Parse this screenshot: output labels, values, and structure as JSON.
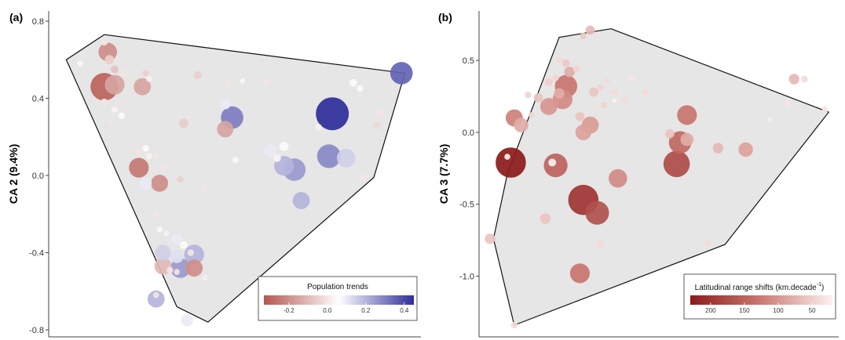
{
  "chart_data": [
    {
      "type": "scatter",
      "panel_label": "(a)",
      "title": "",
      "xlabel": "",
      "ylabel": "CA 2 (9.4%)",
      "xlim": [
        0,
        1
      ],
      "ylim": [
        -0.82,
        0.82
      ],
      "yticks": [
        0.8,
        0.4,
        0.0,
        -0.4,
        -0.8
      ],
      "ytick_labels": [
        "0.8",
        "0.4",
        "0.0",
        "-0.4",
        "-0.8"
      ],
      "grid": false,
      "legend": {
        "title": "Population trends",
        "placement": "bottom-right",
        "range": [
          -0.33,
          0.45
        ],
        "ticks": [
          -0.2,
          0.0,
          0.2,
          0.4
        ],
        "tick_labels": [
          "-0.2",
          "0.0",
          "0.2",
          "0.4"
        ],
        "colors": [
          "#b5564e",
          "#ffffff",
          "#2e2e9a"
        ]
      },
      "hull": [
        [
          0.12,
          0.73
        ],
        [
          0.99,
          0.53
        ],
        [
          0.9,
          -0.01
        ],
        [
          0.42,
          -0.76
        ],
        [
          0.33,
          -0.68
        ],
        [
          0.01,
          0.6
        ]
      ],
      "points": [
        {
          "x": 0.05,
          "y": 0.58,
          "v": 0.04,
          "s": 0.9
        },
        {
          "x": 0.12,
          "y": 0.69,
          "v": 0.0,
          "s": 1.0
        },
        {
          "x": 0.13,
          "y": 0.64,
          "v": -0.2,
          "s": 2.8
        },
        {
          "x": 0.135,
          "y": 0.6,
          "v": -0.05,
          "s": 1.4
        },
        {
          "x": 0.15,
          "y": 0.55,
          "v": -0.08,
          "s": 1.2
        },
        {
          "x": 0.18,
          "y": 0.53,
          "v": 0.0,
          "s": 1.0
        },
        {
          "x": 0.24,
          "y": 0.53,
          "v": -0.05,
          "s": 1.0
        },
        {
          "x": 0.25,
          "y": 0.5,
          "v": 0.02,
          "s": 0.9
        },
        {
          "x": 0.12,
          "y": 0.46,
          "v": -0.3,
          "s": 4.2
        },
        {
          "x": 0.15,
          "y": 0.47,
          "v": -0.15,
          "s": 3.0
        },
        {
          "x": 0.23,
          "y": 0.46,
          "v": -0.15,
          "s": 2.6
        },
        {
          "x": 0.12,
          "y": 0.38,
          "v": 0.0,
          "s": 1.1
        },
        {
          "x": 0.15,
          "y": 0.34,
          "v": 0.03,
          "s": 0.9
        },
        {
          "x": 0.17,
          "y": 0.31,
          "v": 0.05,
          "s": 1.0
        },
        {
          "x": 0.14,
          "y": 0.28,
          "v": 0.0,
          "s": 0.8
        },
        {
          "x": 0.39,
          "y": 0.52,
          "v": -0.05,
          "s": 1.2
        },
        {
          "x": 0.48,
          "y": 0.47,
          "v": 0.0,
          "s": 0.9
        },
        {
          "x": 0.52,
          "y": 0.49,
          "v": 0.04,
          "s": 0.8
        },
        {
          "x": 0.35,
          "y": 0.27,
          "v": -0.06,
          "s": 1.4
        },
        {
          "x": 0.47,
          "y": 0.37,
          "v": 0.1,
          "s": 1.6
        },
        {
          "x": 0.49,
          "y": 0.3,
          "v": 0.3,
          "s": 3.4
        },
        {
          "x": 0.47,
          "y": 0.24,
          "v": -0.15,
          "s": 2.5
        },
        {
          "x": 0.59,
          "y": 0.49,
          "v": 0.0,
          "s": 0.9
        },
        {
          "x": 0.84,
          "y": 0.48,
          "v": 0.05,
          "s": 1.2
        },
        {
          "x": 0.86,
          "y": 0.45,
          "v": 0.05,
          "s": 1.0
        },
        {
          "x": 0.98,
          "y": 0.53,
          "v": 0.35,
          "s": 3.4
        },
        {
          "x": 0.78,
          "y": 0.32,
          "v": 0.45,
          "s": 5.0
        },
        {
          "x": 0.91,
          "y": 0.26,
          "v": -0.03,
          "s": 1.1
        },
        {
          "x": 0.92,
          "y": 0.33,
          "v": 0.0,
          "s": 0.9
        },
        {
          "x": 0.74,
          "y": 0.25,
          "v": 0.03,
          "s": 1.0
        },
        {
          "x": 0.24,
          "y": 0.14,
          "v": 0.05,
          "s": 1.0
        },
        {
          "x": 0.22,
          "y": 0.12,
          "v": 0.0,
          "s": 0.9
        },
        {
          "x": 0.25,
          "y": 0.1,
          "v": 0.03,
          "s": 0.9
        },
        {
          "x": 0.27,
          "y": 0.1,
          "v": 0.0,
          "s": 0.8
        },
        {
          "x": 0.22,
          "y": 0.04,
          "v": -0.25,
          "s": 3.0
        },
        {
          "x": 0.29,
          "y": 0.04,
          "v": 0.0,
          "s": 0.9
        },
        {
          "x": 0.24,
          "y": -0.04,
          "v": 0.1,
          "s": 1.8
        },
        {
          "x": 0.28,
          "y": -0.04,
          "v": -0.2,
          "s": 2.6
        },
        {
          "x": 0.34,
          "y": -0.02,
          "v": -0.05,
          "s": 1.0
        },
        {
          "x": 0.41,
          "y": -0.06,
          "v": 0.0,
          "s": 0.8
        },
        {
          "x": 0.6,
          "y": 0.13,
          "v": 0.1,
          "s": 2.0
        },
        {
          "x": 0.64,
          "y": 0.15,
          "v": 0.05,
          "s": 1.4
        },
        {
          "x": 0.62,
          "y": 0.09,
          "v": 0.03,
          "s": 1.2
        },
        {
          "x": 0.64,
          "y": 0.05,
          "v": 0.2,
          "s": 3.0
        },
        {
          "x": 0.67,
          "y": 0.03,
          "v": 0.25,
          "s": 3.4
        },
        {
          "x": 0.77,
          "y": 0.1,
          "v": 0.28,
          "s": 3.6
        },
        {
          "x": 0.82,
          "y": 0.09,
          "v": 0.15,
          "s": 2.8
        },
        {
          "x": 0.69,
          "y": -0.13,
          "v": 0.2,
          "s": 2.6
        },
        {
          "x": 0.87,
          "y": -0.01,
          "v": 0.0,
          "s": 1.0
        },
        {
          "x": 0.5,
          "y": 0.08,
          "v": 0.04,
          "s": 1.0
        },
        {
          "x": 0.27,
          "y": -0.2,
          "v": 0.0,
          "s": 0.9
        },
        {
          "x": 0.28,
          "y": -0.28,
          "v": 0.04,
          "s": 0.9
        },
        {
          "x": 0.3,
          "y": -0.3,
          "v": 0.03,
          "s": 0.8
        },
        {
          "x": 0.33,
          "y": -0.33,
          "v": 0.1,
          "s": 1.6
        },
        {
          "x": 0.35,
          "y": -0.36,
          "v": 0.05,
          "s": 1.2
        },
        {
          "x": 0.29,
          "y": -0.4,
          "v": 0.15,
          "s": 2.4
        },
        {
          "x": 0.33,
          "y": -0.42,
          "v": 0.12,
          "s": 2.0
        },
        {
          "x": 0.38,
          "y": -0.41,
          "v": 0.2,
          "s": 3.0
        },
        {
          "x": 0.37,
          "y": -0.4,
          "v": 0.0,
          "s": 1.0
        },
        {
          "x": 0.29,
          "y": -0.47,
          "v": -0.1,
          "s": 2.6
        },
        {
          "x": 0.31,
          "y": -0.49,
          "v": 0.0,
          "s": 1.0
        },
        {
          "x": 0.34,
          "y": -0.48,
          "v": 0.25,
          "s": 3.0
        },
        {
          "x": 0.33,
          "y": -0.5,
          "v": 0.0,
          "s": 0.9
        },
        {
          "x": 0.38,
          "y": -0.48,
          "v": -0.2,
          "s": 2.6
        },
        {
          "x": 0.41,
          "y": -0.53,
          "v": 0.02,
          "s": 0.9
        },
        {
          "x": 0.27,
          "y": -0.64,
          "v": 0.2,
          "s": 2.6
        },
        {
          "x": 0.27,
          "y": -0.62,
          "v": 0.0,
          "s": 0.9
        },
        {
          "x": 0.36,
          "y": -0.75,
          "v": 0.1,
          "s": 1.8
        }
      ]
    },
    {
      "type": "scatter",
      "panel_label": "(b)",
      "title": "",
      "xlabel": "",
      "ylabel": "CA 3 (7.7%)",
      "xlim": [
        0,
        1
      ],
      "ylim": [
        -1.4,
        0.8
      ],
      "yticks": [
        0.5,
        0.0,
        -0.5,
        -1.0
      ],
      "ytick_labels": [
        "0.5",
        "0.0",
        "-0.5",
        "-1.0"
      ],
      "grid": false,
      "legend": {
        "title": "Latitudinal range shifts (km.decade",
        "title_superscript": "-1",
        "title_suffix": ")",
        "placement": "bottom-right",
        "range": [
          230,
          20
        ],
        "ticks": [
          200,
          150,
          100,
          50
        ],
        "tick_labels": [
          "200",
          "150",
          "100",
          "50"
        ],
        "colors": [
          "#8c1a1a",
          "#cc7a73",
          "#fdf1ef"
        ]
      },
      "hull": [
        [
          0.35,
          0.72
        ],
        [
          0.98,
          0.14
        ],
        [
          0.68,
          -0.78
        ],
        [
          0.07,
          -1.34
        ],
        [
          0.01,
          -0.74
        ],
        [
          0.05,
          -0.29
        ],
        [
          0.2,
          0.66
        ]
      ],
      "points": [
        {
          "x": 0.29,
          "y": 0.71,
          "v": 70,
          "s": 1.4
        },
        {
          "x": 0.27,
          "y": 0.67,
          "v": 55,
          "s": 1.0
        },
        {
          "x": 0.88,
          "y": 0.37,
          "v": 70,
          "s": 1.6
        },
        {
          "x": 0.91,
          "y": 0.37,
          "v": 40,
          "s": 1.0
        },
        {
          "x": 0.97,
          "y": 0.16,
          "v": 30,
          "s": 1.0
        },
        {
          "x": 0.86,
          "y": 0.2,
          "v": 30,
          "s": 0.9
        },
        {
          "x": 0.81,
          "y": 0.09,
          "v": 25,
          "s": 0.8
        },
        {
          "x": 0.2,
          "y": 0.5,
          "v": 40,
          "s": 1.0
        },
        {
          "x": 0.22,
          "y": 0.48,
          "v": 55,
          "s": 1.2
        },
        {
          "x": 0.23,
          "y": 0.42,
          "v": 80,
          "s": 1.6
        },
        {
          "x": 0.25,
          "y": 0.44,
          "v": 45,
          "s": 1.0
        },
        {
          "x": 0.17,
          "y": 0.35,
          "v": 50,
          "s": 1.2
        },
        {
          "x": 0.19,
          "y": 0.38,
          "v": 45,
          "s": 1.0
        },
        {
          "x": 0.22,
          "y": 0.32,
          "v": 130,
          "s": 3.4
        },
        {
          "x": 0.2,
          "y": 0.27,
          "v": 80,
          "s": 1.6
        },
        {
          "x": 0.21,
          "y": 0.23,
          "v": 110,
          "s": 3.0
        },
        {
          "x": 0.14,
          "y": 0.24,
          "v": 60,
          "s": 1.4
        },
        {
          "x": 0.17,
          "y": 0.18,
          "v": 100,
          "s": 2.6
        },
        {
          "x": 0.11,
          "y": 0.26,
          "v": 45,
          "s": 1.0
        },
        {
          "x": 0.12,
          "y": 0.12,
          "v": 45,
          "s": 0.9
        },
        {
          "x": 0.07,
          "y": 0.1,
          "v": 120,
          "s": 2.6
        },
        {
          "x": 0.09,
          "y": 0.05,
          "v": 80,
          "s": 2.2
        },
        {
          "x": 0.3,
          "y": 0.28,
          "v": 60,
          "s": 1.4
        },
        {
          "x": 0.32,
          "y": 0.31,
          "v": 45,
          "s": 1.0
        },
        {
          "x": 0.34,
          "y": 0.36,
          "v": 40,
          "s": 0.9
        },
        {
          "x": 0.36,
          "y": 0.28,
          "v": 40,
          "s": 1.0
        },
        {
          "x": 0.33,
          "y": 0.19,
          "v": 45,
          "s": 1.0
        },
        {
          "x": 0.39,
          "y": 0.22,
          "v": 40,
          "s": 0.9
        },
        {
          "x": 0.26,
          "y": 0.11,
          "v": 60,
          "s": 1.4
        },
        {
          "x": 0.29,
          "y": 0.05,
          "v": 95,
          "s": 2.6
        },
        {
          "x": 0.27,
          "y": 0.0,
          "v": 90,
          "s": 2.4
        },
        {
          "x": 0.57,
          "y": 0.12,
          "v": 130,
          "s": 3.0
        },
        {
          "x": 0.55,
          "y": -0.07,
          "v": 145,
          "s": 3.4
        },
        {
          "x": 0.52,
          "y": -0.01,
          "v": 60,
          "s": 1.4
        },
        {
          "x": 0.57,
          "y": -0.05,
          "v": 80,
          "s": 2.0
        },
        {
          "x": 0.66,
          "y": -0.11,
          "v": 70,
          "s": 1.6
        },
        {
          "x": 0.74,
          "y": -0.12,
          "v": 90,
          "s": 2.2
        },
        {
          "x": 0.54,
          "y": -0.22,
          "v": 175,
          "s": 4.0
        },
        {
          "x": 0.06,
          "y": -0.21,
          "v": 230,
          "s": 4.6
        },
        {
          "x": 0.05,
          "y": -0.17,
          "v": 10,
          "s": 0.9
        },
        {
          "x": 0.19,
          "y": -0.23,
          "v": 150,
          "s": 3.6
        },
        {
          "x": 0.18,
          "y": -0.21,
          "v": 20,
          "s": 1.2
        },
        {
          "x": 0.37,
          "y": -0.32,
          "v": 110,
          "s": 2.8
        },
        {
          "x": 0.27,
          "y": -0.47,
          "v": 200,
          "s": 4.6
        },
        {
          "x": 0.31,
          "y": -0.56,
          "v": 170,
          "s": 3.6
        },
        {
          "x": 0.16,
          "y": -0.6,
          "v": 60,
          "s": 1.6
        },
        {
          "x": 0.26,
          "y": -0.98,
          "v": 130,
          "s": 3.0
        },
        {
          "x": 0.0,
          "y": -0.74,
          "v": 60,
          "s": 1.6
        },
        {
          "x": 0.32,
          "y": -0.78,
          "v": 40,
          "s": 1.2
        },
        {
          "x": 0.07,
          "y": -1.34,
          "v": 40,
          "s": 1.0
        },
        {
          "x": 0.63,
          "y": -0.77,
          "v": 40,
          "s": 1.0
        },
        {
          "x": 0.45,
          "y": 0.28,
          "v": 40,
          "s": 1.0
        },
        {
          "x": 0.41,
          "y": 0.37,
          "v": 30,
          "s": 0.8
        },
        {
          "x": 0.36,
          "y": 0.22,
          "v": 0,
          "s": 0.7
        }
      ]
    }
  ]
}
